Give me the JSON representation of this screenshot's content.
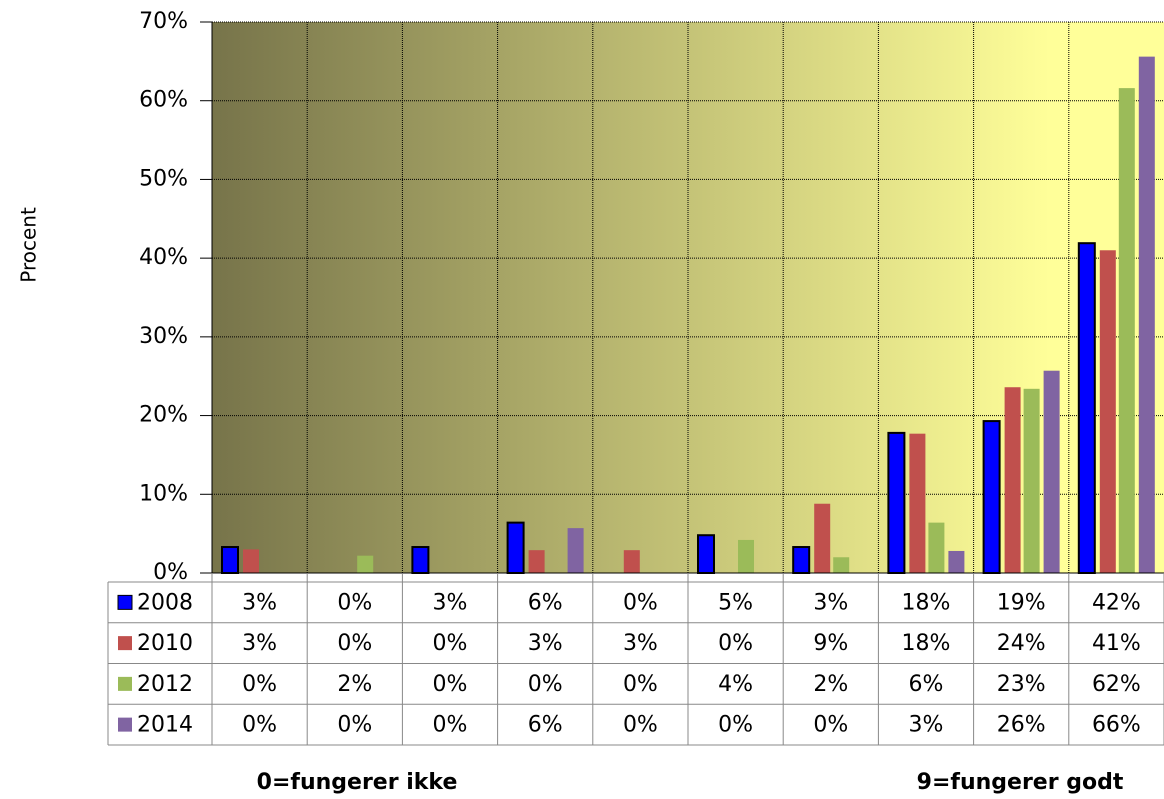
{
  "chart_data": {
    "type": "bar",
    "y_label": "Procent",
    "annotations": [
      "0=fungerer ikke",
      "9=fungerer godt"
    ],
    "categories": [
      null,
      null,
      null,
      null,
      null,
      null,
      null,
      null,
      null,
      null
    ],
    "series": [
      {
        "name": "2008",
        "color": "#0000ff",
        "values": [
          3.3,
          0,
          3.3,
          6.4,
          0,
          4.8,
          3.3,
          17.8,
          19.3,
          41.9
        ],
        "value_labels": [
          "3%",
          "0%",
          "3%",
          "6%",
          "0%",
          "5%",
          "3%",
          "18%",
          "19%",
          "42%"
        ]
      },
      {
        "name": "2010",
        "color": "#c0504d",
        "values": [
          3.0,
          0,
          0,
          2.9,
          2.9,
          0,
          8.8,
          17.7,
          23.6,
          41.0
        ],
        "value_labels": [
          "3%",
          "0%",
          "0%",
          "3%",
          "3%",
          "0%",
          "9%",
          "18%",
          "24%",
          "41%"
        ]
      },
      {
        "name": "2012",
        "color": "#9bbb59",
        "values": [
          0,
          2.2,
          0,
          0,
          0,
          4.2,
          2.0,
          6.4,
          23.4,
          61.6
        ],
        "value_labels": [
          "0%",
          "2%",
          "0%",
          "0%",
          "0%",
          "4%",
          "2%",
          "6%",
          "23%",
          "62%"
        ]
      },
      {
        "name": "2014",
        "color": "#8064a2",
        "values": [
          0,
          0,
          0,
          5.7,
          0,
          0,
          0,
          2.8,
          25.7,
          65.6
        ],
        "value_labels": [
          "0%",
          "0%",
          "0%",
          "6%",
          "0%",
          "0%",
          "0%",
          "3%",
          "26%",
          "66%"
        ]
      }
    ],
    "ylim": [
      0,
      70
    ],
    "yticks": [
      {
        "value": 0,
        "label": "0%"
      },
      {
        "value": 10,
        "label": "10%"
      },
      {
        "value": 20,
        "label": "20%"
      },
      {
        "value": 30,
        "label": "30%"
      },
      {
        "value": 40,
        "label": "40%"
      },
      {
        "value": 50,
        "label": "50%"
      },
      {
        "value": 60,
        "label": "60%"
      },
      {
        "value": 70,
        "label": "70%"
      }
    ],
    "grid": true,
    "background": [
      "#77744a",
      "#ffff99"
    ]
  }
}
